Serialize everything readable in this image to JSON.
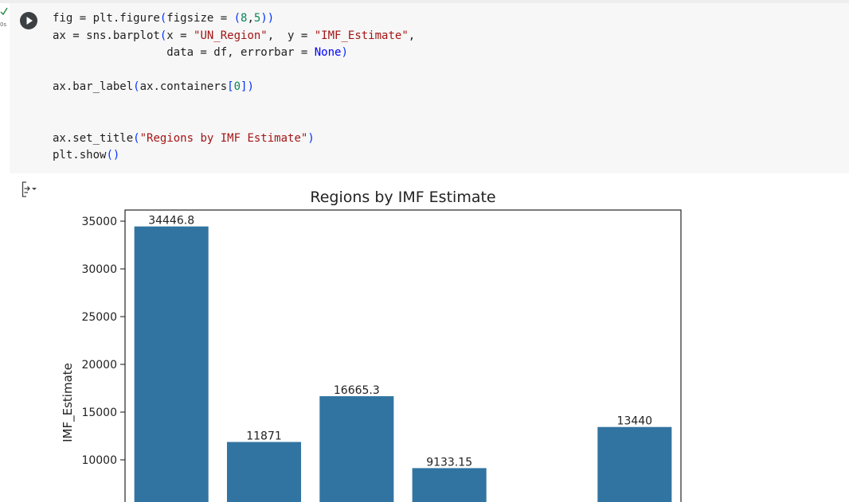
{
  "cell": {
    "code_lines": [
      [
        {
          "t": "fig = plt.figure",
          "c": ""
        },
        {
          "t": "(",
          "c": "p"
        },
        {
          "t": "figsize = ",
          "c": ""
        },
        {
          "t": "(",
          "c": "p"
        },
        {
          "t": "8",
          "c": "n"
        },
        {
          "t": ",",
          "c": ""
        },
        {
          "t": "5",
          "c": "n"
        },
        {
          "t": "))",
          "c": "p"
        }
      ],
      [
        {
          "t": "ax = sns.barplot",
          "c": ""
        },
        {
          "t": "(",
          "c": "p"
        },
        {
          "t": "x = ",
          "c": ""
        },
        {
          "t": "\"UN_Region\"",
          "c": "s"
        },
        {
          "t": ",  y = ",
          "c": ""
        },
        {
          "t": "\"IMF_Estimate\"",
          "c": "s"
        },
        {
          "t": ",",
          "c": ""
        }
      ],
      [
        {
          "t": "                 data = df, errorbar = ",
          "c": ""
        },
        {
          "t": "None",
          "c": "k"
        },
        {
          "t": ")",
          "c": "p"
        }
      ],
      [],
      [
        {
          "t": "ax.bar_label",
          "c": ""
        },
        {
          "t": "(",
          "c": "p"
        },
        {
          "t": "ax.containers",
          "c": ""
        },
        {
          "t": "[",
          "c": "p"
        },
        {
          "t": "0",
          "c": "n"
        },
        {
          "t": "])",
          "c": "p"
        }
      ],
      [],
      [],
      [
        {
          "t": "ax.set_title",
          "c": ""
        },
        {
          "t": "(",
          "c": "p"
        },
        {
          "t": "\"Regions by IMF Estimate\"",
          "c": "s"
        },
        {
          "t": ")",
          "c": "p"
        }
      ],
      [
        {
          "t": "plt.show",
          "c": ""
        },
        {
          "t": "()",
          "c": "p"
        }
      ]
    ],
    "exec_count": "0s"
  },
  "icons": {
    "run": "play-icon",
    "output": "output-collapse-icon",
    "status": "check-icon"
  },
  "colors": {
    "bar": "#3274a1",
    "cell_bg": "#f7f7f7",
    "string": "#a31515",
    "number": "#098658",
    "keyword": "#0000ff"
  },
  "chart_data": {
    "type": "bar",
    "title": "Regions by IMF Estimate",
    "xlabel": "",
    "ylabel": "IMF_Estimate",
    "categories": [
      "",
      "",
      "",
      "",
      "",
      ""
    ],
    "values": [
      34446.8,
      11871,
      16665.3,
      9133.15,
      null,
      13440
    ],
    "bar_labels": [
      "34446.8",
      "11871",
      "16665.3",
      "9133.15",
      "",
      "13440"
    ],
    "ylim": [
      5000,
      36500
    ],
    "yticks": [
      10000,
      15000,
      20000,
      25000,
      30000,
      35000
    ],
    "grid": false,
    "bar_color": "#3274a1"
  }
}
